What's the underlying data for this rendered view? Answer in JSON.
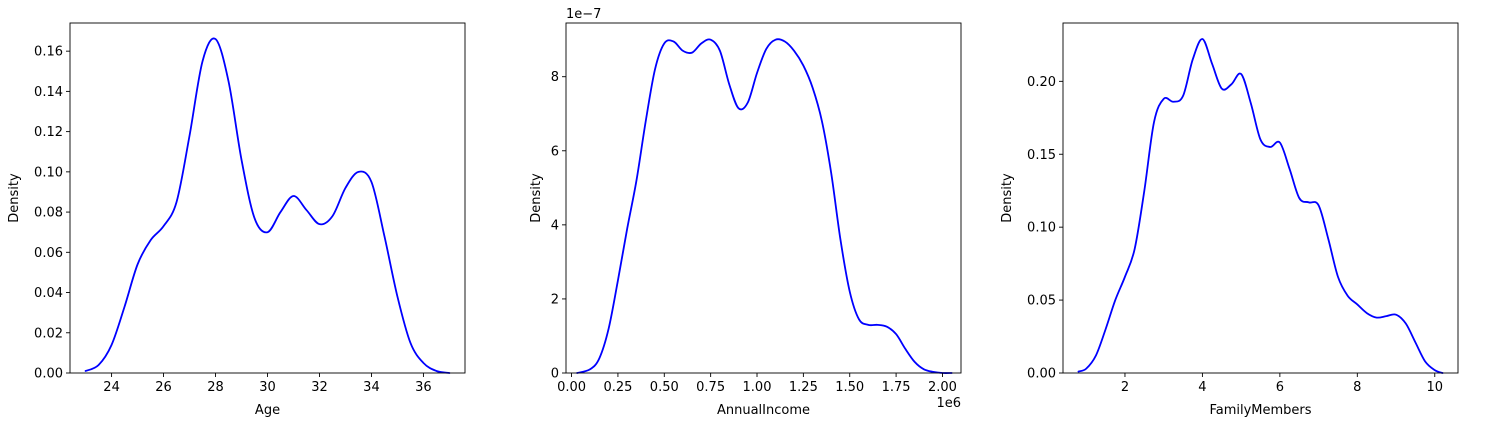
{
  "chart_data": [
    {
      "type": "line",
      "xlabel": "Age",
      "ylabel": "Density",
      "offset_label": "",
      "xlim": [
        22.4,
        37.6
      ],
      "ylim": [
        0,
        0.174
      ],
      "xticks": [
        24,
        26,
        28,
        30,
        32,
        34,
        36
      ],
      "xtick_labels": [
        "24",
        "26",
        "28",
        "30",
        "32",
        "34",
        "36"
      ],
      "yticks": [
        0,
        0.02,
        0.04,
        0.06,
        0.08,
        0.1,
        0.12,
        0.14,
        0.16
      ],
      "ytick_labels": [
        "0.00",
        "0.02",
        "0.04",
        "0.06",
        "0.08",
        "0.10",
        "0.12",
        "0.14",
        "0.16"
      ],
      "color": "#0000ff",
      "x": [
        23.0,
        23.5,
        24.0,
        24.5,
        25.0,
        25.5,
        26.0,
        26.5,
        27.0,
        27.5,
        28.0,
        28.5,
        29.0,
        29.5,
        30.0,
        30.5,
        31.0,
        31.5,
        32.0,
        32.5,
        33.0,
        33.5,
        34.0,
        34.5,
        35.0,
        35.5,
        36.0,
        36.5,
        37.0
      ],
      "y": [
        0.001,
        0.004,
        0.014,
        0.033,
        0.054,
        0.066,
        0.073,
        0.085,
        0.118,
        0.155,
        0.166,
        0.145,
        0.106,
        0.077,
        0.07,
        0.08,
        0.088,
        0.081,
        0.074,
        0.078,
        0.092,
        0.1,
        0.095,
        0.068,
        0.038,
        0.015,
        0.005,
        0.001,
        0.0
      ]
    },
    {
      "type": "line",
      "xlabel": "AnnualIncome",
      "ylabel": "Density",
      "offset_label": "1e−7",
      "x_offset_label": "1e6",
      "xlim": [
        -0.03,
        2.1
      ],
      "ylim": [
        0,
        9.45
      ],
      "xticks": [
        0.0,
        0.25,
        0.5,
        0.75,
        1.0,
        1.25,
        1.5,
        1.75,
        2.0
      ],
      "xtick_labels": [
        "0.00",
        "0.25",
        "0.50",
        "0.75",
        "1.00",
        "1.25",
        "1.50",
        "1.75",
        "2.00"
      ],
      "yticks": [
        0,
        2,
        4,
        6,
        8
      ],
      "ytick_labels": [
        "0",
        "2",
        "4",
        "6",
        "8"
      ],
      "color": "#0000ff",
      "x": [
        0.03,
        0.1,
        0.15,
        0.2,
        0.25,
        0.3,
        0.35,
        0.4,
        0.45,
        0.5,
        0.55,
        0.6,
        0.65,
        0.7,
        0.75,
        0.8,
        0.85,
        0.9,
        0.95,
        1.0,
        1.05,
        1.1,
        1.15,
        1.2,
        1.25,
        1.3,
        1.35,
        1.4,
        1.45,
        1.5,
        1.55,
        1.6,
        1.65,
        1.7,
        1.75,
        1.8,
        1.85,
        1.9,
        1.95,
        2.0,
        2.05
      ],
      "y": [
        0.0,
        0.1,
        0.4,
        1.2,
        2.5,
        3.9,
        5.2,
        6.8,
        8.2,
        8.9,
        8.95,
        8.7,
        8.65,
        8.9,
        9.0,
        8.7,
        7.8,
        7.15,
        7.3,
        8.1,
        8.75,
        9.0,
        8.95,
        8.7,
        8.3,
        7.7,
        6.8,
        5.4,
        3.6,
        2.2,
        1.45,
        1.3,
        1.3,
        1.25,
        1.05,
        0.65,
        0.3,
        0.1,
        0.03,
        0.0,
        0.0
      ]
    },
    {
      "type": "line",
      "xlabel": "FamilyMembers",
      "ylabel": "Density",
      "offset_label": "",
      "xlim": [
        0.4,
        10.6
      ],
      "ylim": [
        0,
        0.24
      ],
      "xticks": [
        2,
        4,
        6,
        8,
        10
      ],
      "xtick_labels": [
        "2",
        "4",
        "6",
        "8",
        "10"
      ],
      "yticks": [
        0,
        0.05,
        0.1,
        0.15,
        0.2
      ],
      "ytick_labels": [
        "0.00",
        "0.05",
        "0.10",
        "0.15",
        "0.20"
      ],
      "color": "#0000ff",
      "x": [
        0.8,
        1.0,
        1.25,
        1.5,
        1.75,
        2.0,
        2.25,
        2.5,
        2.75,
        3.0,
        3.25,
        3.5,
        3.75,
        4.0,
        4.25,
        4.5,
        4.75,
        5.0,
        5.25,
        5.5,
        5.75,
        6.0,
        6.25,
        6.5,
        6.75,
        7.0,
        7.25,
        7.5,
        7.75,
        8.0,
        8.25,
        8.5,
        8.75,
        9.0,
        9.25,
        9.5,
        9.75,
        10.0,
        10.2
      ],
      "y": [
        0.001,
        0.003,
        0.012,
        0.03,
        0.05,
        0.066,
        0.085,
        0.125,
        0.172,
        0.188,
        0.186,
        0.19,
        0.215,
        0.229,
        0.212,
        0.195,
        0.198,
        0.205,
        0.185,
        0.16,
        0.155,
        0.158,
        0.14,
        0.12,
        0.117,
        0.115,
        0.092,
        0.066,
        0.053,
        0.047,
        0.041,
        0.038,
        0.039,
        0.04,
        0.034,
        0.021,
        0.008,
        0.002,
        0.0
      ]
    }
  ]
}
